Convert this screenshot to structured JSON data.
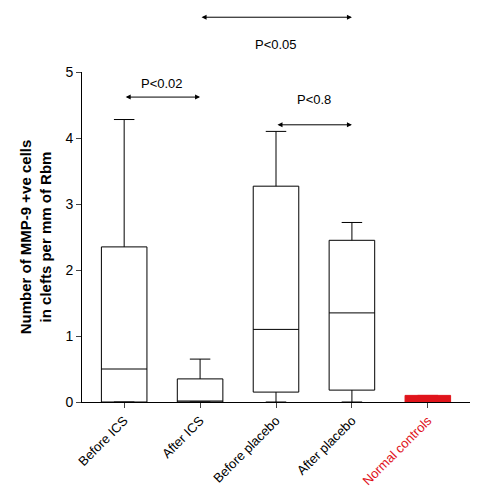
{
  "chart_data": {
    "type": "box",
    "ylabel": "Number of MMP-9 +ve cells\nin clefts per mm of Rbm",
    "categories": [
      "Before ICS",
      "After ICS",
      "Before placebo",
      "After placebo",
      "Normal controls"
    ],
    "lowerfence": [
      0,
      0,
      0,
      0,
      0
    ],
    "q1": [
      0,
      0,
      0.15,
      0.18,
      0
    ],
    "median": [
      0.5,
      0,
      1.1,
      1.35,
      0
    ],
    "q3": [
      2.35,
      0.35,
      3.27,
      2.45,
      0.1
    ],
    "upperfence": [
      4.28,
      0.65,
      4.1,
      2.72,
      0.1
    ],
    "colors": [
      "#ffffff",
      "#ffffff",
      "#ffffff",
      "#ffffff",
      "#e0141b"
    ],
    "ylim": [
      0,
      5
    ],
    "yticks": [
      0,
      1,
      2,
      3,
      4,
      5
    ],
    "grid": false,
    "annotations": [
      {
        "text": "P<0.02",
        "from": "Before ICS",
        "to": "After ICS",
        "arrow_y": 4.62,
        "text_y": 4.83
      },
      {
        "text": "P<0.05",
        "from": "After ICS",
        "to": "After placebo",
        "arrow_y": 5.83,
        "text_y": 5.42
      },
      {
        "text": "P<0.8",
        "from": "Before placebo",
        "to": "After placebo",
        "arrow_y": 4.2,
        "text_y": 4.58
      }
    ]
  }
}
